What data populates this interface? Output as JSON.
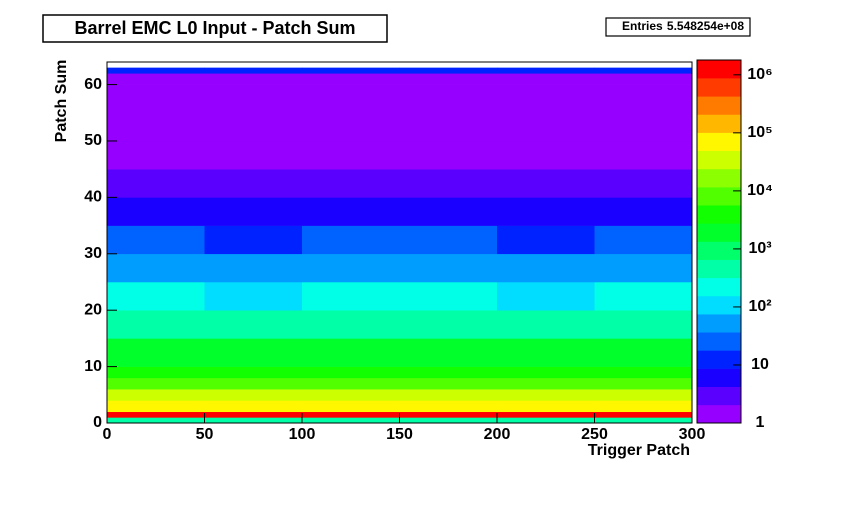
{
  "chart_data": {
    "type": "heatmap",
    "title": "Barrel EMC L0 Input - Patch Sum",
    "stats_label": "Entries",
    "stats_value": "5.548254e+08",
    "x_label": "Trigger Patch",
    "y_label": "Patch Sum",
    "x_bins": [
      0,
      50,
      100,
      150,
      200,
      250,
      300
    ],
    "y_bins": [
      0,
      1,
      2,
      4,
      6,
      8,
      10,
      15,
      20,
      25,
      30,
      35,
      40,
      45,
      50,
      55,
      60,
      62,
      63,
      64
    ],
    "z": [
      [
        500,
        400,
        450,
        500,
        400,
        450
      ],
      [
        1000000,
        900000,
        1000000,
        1000000,
        900000,
        1000000
      ],
      [
        100000,
        90000,
        100000,
        100000,
        90000,
        100000
      ],
      [
        30000,
        25000,
        30000,
        30000,
        25000,
        30000
      ],
      [
        10000,
        8000,
        10000,
        10000,
        8000,
        10000
      ],
      [
        5000,
        4000,
        5000,
        5000,
        4000,
        5000
      ],
      [
        2000,
        1500,
        2000,
        2000,
        1500,
        2000
      ],
      [
        500,
        400,
        500,
        500,
        400,
        500
      ],
      [
        200,
        150,
        200,
        200,
        150,
        200
      ],
      [
        60,
        40,
        50,
        60,
        40,
        60
      ],
      [
        20,
        15,
        18,
        20,
        15,
        20
      ],
      [
        8,
        6,
        7,
        8,
        6,
        8
      ],
      [
        4,
        3,
        3,
        4,
        3,
        4
      ],
      [
        2,
        2,
        2,
        2,
        2,
        2
      ],
      [
        1.5,
        1.4,
        1.5,
        1.5,
        1.4,
        1.5
      ],
      [
        1.2,
        1.1,
        1.2,
        1.2,
        1.1,
        1.2
      ],
      [
        1,
        1,
        1,
        1,
        1,
        1
      ],
      [
        10,
        10,
        10,
        10,
        10,
        10
      ],
      [
        null,
        null,
        null,
        null,
        null,
        null
      ]
    ],
    "xlim": [
      0,
      300
    ],
    "ylim": [
      0,
      64
    ],
    "zlim": [
      1,
      1800000
    ],
    "log_z": true,
    "xticks": [
      0,
      50,
      100,
      150,
      200,
      250,
      300
    ],
    "yticks": [
      0,
      10,
      20,
      30,
      40,
      50,
      60
    ],
    "zticks": [
      1,
      10,
      {
        "value": 100,
        "label": "10²"
      },
      {
        "value": 1000,
        "label": "10³"
      },
      {
        "value": 10000,
        "label": "10⁴"
      },
      {
        "value": 100000,
        "label": "10⁵"
      },
      {
        "value": 1000000,
        "label": "10⁶"
      }
    ]
  }
}
